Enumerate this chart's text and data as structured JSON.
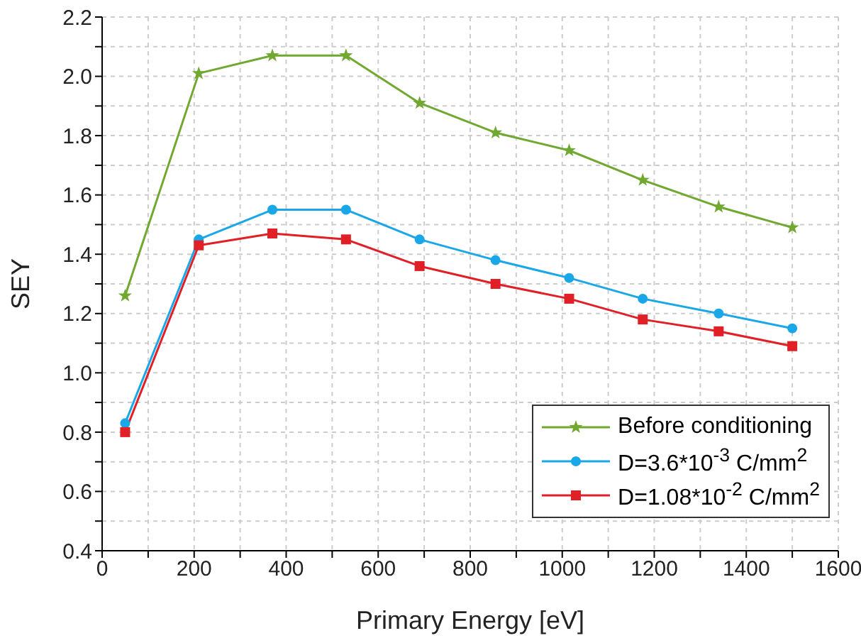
{
  "chart_data": {
    "type": "line",
    "xlabel": "Primary Energy [eV]",
    "ylabel": "SEY",
    "x": [
      50,
      210,
      370,
      530,
      690,
      855,
      1015,
      1175,
      1340,
      1500
    ],
    "series": [
      {
        "name": "Before conditioning",
        "color": "#70a830",
        "marker": "star",
        "values": [
          1.26,
          2.01,
          2.07,
          2.07,
          1.91,
          1.81,
          1.75,
          1.65,
          1.56,
          1.49
        ]
      },
      {
        "name": "D=3.6*10$^{-3}$ C/mm$^{2}$",
        "color": "#1aa7e8",
        "marker": "circle",
        "values": [
          0.83,
          1.45,
          1.55,
          1.55,
          1.45,
          1.38,
          1.32,
          1.25,
          1.2,
          1.15
        ]
      },
      {
        "name": "D=1.08*10$^{-2}$ C/mm$^{2}$",
        "color": "#e01f26",
        "marker": "square",
        "values": [
          0.8,
          1.43,
          1.47,
          1.45,
          1.36,
          1.3,
          1.25,
          1.18,
          1.14,
          1.09
        ]
      }
    ],
    "xlim": [
      0,
      1600
    ],
    "xticks": [
      0,
      {
        "value": 100,
        "label": null
      },
      200,
      {
        "value": 300,
        "label": null
      },
      400,
      {
        "value": 500,
        "label": null
      },
      600,
      {
        "value": 700,
        "label": null
      },
      800,
      {
        "value": 900,
        "label": null
      },
      1000,
      {
        "value": 1100,
        "label": null
      },
      1200,
      {
        "value": 1300,
        "label": null
      },
      1400,
      {
        "value": 1500,
        "label": null
      },
      1600
    ],
    "ylim": [
      0.4,
      2.2
    ],
    "yticks": [
      {
        "value": 0.4,
        "label": "0.4"
      },
      {
        "value": 0.5,
        "label": null
      },
      {
        "value": 0.6,
        "label": "0.6"
      },
      {
        "value": 0.7,
        "label": null
      },
      {
        "value": 0.8,
        "label": "0.8"
      },
      {
        "value": 0.9,
        "label": null
      },
      {
        "value": 1.0,
        "label": "1.0"
      },
      {
        "value": 1.1,
        "label": null
      },
      {
        "value": 1.2,
        "label": "1.2"
      },
      {
        "value": 1.3,
        "label": null
      },
      {
        "value": 1.4,
        "label": "1.4"
      },
      {
        "value": 1.5,
        "label": null
      },
      {
        "value": 1.6,
        "label": "1.6"
      },
      {
        "value": 1.7,
        "label": null
      },
      {
        "value": 1.8,
        "label": "1.8"
      },
      {
        "value": 1.9,
        "label": null
      },
      {
        "value": 2.0,
        "label": "2.0"
      },
      {
        "value": 2.1,
        "label": null
      },
      {
        "value": 2.2,
        "label": "2.2"
      }
    ],
    "grid": true,
    "legend": "bottom right",
    "line_style": "solid"
  }
}
